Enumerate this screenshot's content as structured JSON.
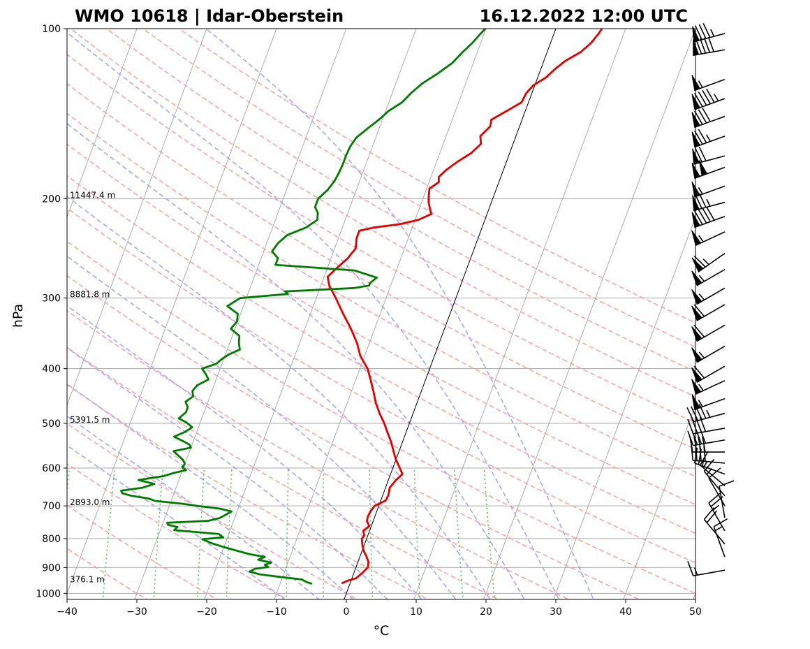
{
  "chart_data": {
    "type": "line",
    "title_left": "WMO 10618 | Idar-Oberstein",
    "title_right": "16.12.2022 12:00 UTC",
    "xlabel": "°C",
    "ylabel": "hPa",
    "x_range": [
      -40,
      50
    ],
    "y_range": [
      1025,
      100
    ],
    "y_scale": "log",
    "x_ticks": [
      "−40",
      "−30",
      "−20",
      "−10",
      "0",
      "10",
      "20",
      "30",
      "40",
      "50"
    ],
    "y_ticks": [
      "100",
      "200",
      "300",
      "400",
      "500",
      "600",
      "700",
      "800",
      "900",
      "1000"
    ],
    "height_labels": [
      {
        "pressure": 200,
        "text": "11447.4 m"
      },
      {
        "pressure": 300,
        "text": "8881.8 m"
      },
      {
        "pressure": 500,
        "text": "5391.5 m"
      },
      {
        "pressure": 700,
        "text": "2893.0 m"
      },
      {
        "pressure": 958,
        "text": "376.1 m"
      }
    ],
    "background": {
      "skew_dt_per_log10p": 30.0,
      "dry_adiabats_C": [
        -30,
        -20,
        -10,
        0,
        10,
        20,
        30,
        40,
        50,
        60,
        70,
        80,
        90,
        100,
        110,
        120,
        130,
        140,
        150
      ],
      "moist_adiabats_C": [
        -10,
        -5,
        0,
        5,
        10,
        15,
        20,
        25,
        30,
        35
      ],
      "mixing_ratio_isolines_gkg": [
        0.1,
        0.2,
        0.4,
        0.7,
        1,
        2,
        3,
        5,
        8,
        12,
        16
      ],
      "zero_isotherm": true
    },
    "colors": {
      "temperature": "#e00000",
      "dewpoint": "#007b00",
      "dry_adiabat": "#f4a6a6",
      "moist_adiabat": "#a6a6ef",
      "mixing_ratio": "#5fb85f",
      "isotherm": "#888888",
      "isobar": "#aaaaaa"
    },
    "series": [
      {
        "key": "temperature",
        "points": [
          [
            960,
            -1.2
          ],
          [
            950,
            -0.5
          ],
          [
            940,
            0.6
          ],
          [
            920,
            1.2
          ],
          [
            900,
            1.7
          ],
          [
            880,
            1.5
          ],
          [
            860,
            0.9
          ],
          [
            840,
            0.2
          ],
          [
            820,
            -0.3
          ],
          [
            800,
            -0.7
          ],
          [
            790,
            -0.5
          ],
          [
            775,
            -0.9
          ],
          [
            760,
            -0.3
          ],
          [
            745,
            -0.9
          ],
          [
            730,
            -1.0
          ],
          [
            715,
            -0.9
          ],
          [
            700,
            -0.6
          ],
          [
            685,
            0.7
          ],
          [
            670,
            0.8
          ],
          [
            650,
            0.6
          ],
          [
            630,
            1.1
          ],
          [
            615,
            1.7
          ],
          [
            600,
            1.0
          ],
          [
            580,
            0.0
          ],
          [
            560,
            -0.8
          ],
          [
            540,
            -1.6
          ],
          [
            520,
            -2.6
          ],
          [
            500,
            -3.6
          ],
          [
            480,
            -4.8
          ],
          [
            460,
            -5.9
          ],
          [
            440,
            -6.8
          ],
          [
            420,
            -7.8
          ],
          [
            400,
            -8.9
          ],
          [
            380,
            -10.6
          ],
          [
            360,
            -11.8
          ],
          [
            340,
            -13.4
          ],
          [
            320,
            -15.3
          ],
          [
            300,
            -17.2
          ],
          [
            285,
            -18.8
          ],
          [
            275,
            -19.5
          ],
          [
            265,
            -18.6
          ],
          [
            255,
            -17.6
          ],
          [
            245,
            -17.0
          ],
          [
            235,
            -17.4
          ],
          [
            228,
            -17.4
          ],
          [
            225,
            -15.5
          ],
          [
            222,
            -12.0
          ],
          [
            218,
            -9.5
          ],
          [
            213,
            -8.0
          ],
          [
            208,
            -8.5
          ],
          [
            203,
            -9.0
          ],
          [
            198,
            -9.3
          ],
          [
            192,
            -9.6
          ],
          [
            187,
            -8.6
          ],
          [
            183,
            -8.9
          ],
          [
            178,
            -8.2
          ],
          [
            172,
            -7.0
          ],
          [
            166,
            -5.5
          ],
          [
            160,
            -4.6
          ],
          [
            155,
            -5.1
          ],
          [
            149,
            -4.2
          ],
          [
            145,
            -4.4
          ],
          [
            140,
            -2.7
          ],
          [
            135,
            -1.0
          ],
          [
            130,
            -0.8
          ],
          [
            126,
            -0.2
          ],
          [
            122,
            1.2
          ],
          [
            118,
            2.0
          ],
          [
            114,
            3.1
          ],
          [
            110,
            4.8
          ],
          [
            106,
            5.8
          ],
          [
            102,
            6.4
          ],
          [
            100,
            6.6
          ]
        ]
      },
      {
        "key": "dewpoint",
        "points": [
          [
            962,
            -5.4
          ],
          [
            955,
            -6.3
          ],
          [
            945,
            -7.1
          ],
          [
            935,
            -10.5
          ],
          [
            925,
            -13.5
          ],
          [
            915,
            -15.0
          ],
          [
            905,
            -14.4
          ],
          [
            898,
            -12.6
          ],
          [
            890,
            -13.2
          ],
          [
            882,
            -12.4
          ],
          [
            872,
            -14.4
          ],
          [
            862,
            -13.6
          ],
          [
            852,
            -16.0
          ],
          [
            840,
            -18.0
          ],
          [
            828,
            -20.0
          ],
          [
            815,
            -22.0
          ],
          [
            802,
            -23.5
          ],
          [
            796,
            -20.6
          ],
          [
            785,
            -21.4
          ],
          [
            773,
            -28.0
          ],
          [
            763,
            -27.7
          ],
          [
            756,
            -29.2
          ],
          [
            750,
            -29.4
          ],
          [
            744,
            -23.6
          ],
          [
            736,
            -22.2
          ],
          [
            728,
            -21.6
          ],
          [
            716,
            -20.8
          ],
          [
            708,
            -22.6
          ],
          [
            700,
            -26.0
          ],
          [
            694,
            -28.2
          ],
          [
            686,
            -32.3
          ],
          [
            680,
            -33.2
          ],
          [
            672,
            -35.9
          ],
          [
            665,
            -37.4
          ],
          [
            658,
            -37.7
          ],
          [
            650,
            -34.8
          ],
          [
            640,
            -33.3
          ],
          [
            630,
            -35.8
          ],
          [
            620,
            -32.4
          ],
          [
            612,
            -31.1
          ],
          [
            605,
            -29.5
          ],
          [
            598,
            -30.2
          ],
          [
            590,
            -30.0
          ],
          [
            580,
            -30.5
          ],
          [
            570,
            -31.4
          ],
          [
            560,
            -32.3
          ],
          [
            552,
            -30.0
          ],
          [
            545,
            -30.4
          ],
          [
            538,
            -31.4
          ],
          [
            528,
            -33.0
          ],
          [
            518,
            -31.7
          ],
          [
            508,
            -30.9
          ],
          [
            498,
            -32.0
          ],
          [
            490,
            -33.3
          ],
          [
            478,
            -32.6
          ],
          [
            468,
            -32.6
          ],
          [
            458,
            -33.2
          ],
          [
            448,
            -32.4
          ],
          [
            438,
            -32.8
          ],
          [
            428,
            -32.4
          ],
          [
            418,
            -31.1
          ],
          [
            410,
            -31.7
          ],
          [
            400,
            -32.6
          ],
          [
            392,
            -30.8
          ],
          [
            385,
            -30.3
          ],
          [
            378,
            -29.6
          ],
          [
            370,
            -28.2
          ],
          [
            360,
            -28.7
          ],
          [
            350,
            -29.0
          ],
          [
            340,
            -30.6
          ],
          [
            330,
            -30.1
          ],
          [
            320,
            -30.4
          ],
          [
            310,
            -32.3
          ],
          [
            300,
            -30.9
          ],
          [
            295,
            -24.3
          ],
          [
            292,
            -24.8
          ],
          [
            288,
            -15.1
          ],
          [
            285,
            -13.1
          ],
          [
            282,
            -13.1
          ],
          [
            276,
            -12.4
          ],
          [
            268,
            -16.0
          ],
          [
            262,
            -27.6
          ],
          [
            255,
            -27.6
          ],
          [
            248,
            -28.8
          ],
          [
            240,
            -28.4
          ],
          [
            232,
            -27.5
          ],
          [
            225,
            -25.2
          ],
          [
            218,
            -24.0
          ],
          [
            212,
            -24.3
          ],
          [
            207,
            -25.0
          ],
          [
            200,
            -25.0
          ],
          [
            193,
            -24.1
          ],
          [
            186,
            -23.6
          ],
          [
            180,
            -23.4
          ],
          [
            174,
            -23.3
          ],
          [
            168,
            -23.3
          ],
          [
            162,
            -23.2
          ],
          [
            156,
            -22.8
          ],
          [
            150,
            -21.6
          ],
          [
            145,
            -20.5
          ],
          [
            140,
            -19.6
          ],
          [
            135,
            -18.1
          ],
          [
            130,
            -17.3
          ],
          [
            125,
            -16.2
          ],
          [
            120,
            -14.5
          ],
          [
            115,
            -13.0
          ],
          [
            110,
            -12.1
          ],
          [
            106,
            -11.2
          ],
          [
            102,
            -10.5
          ],
          [
            100,
            -10.1
          ]
        ]
      }
    ],
    "wind_barbs": [
      {
        "p": 102,
        "dir": 255,
        "kt": 85
      },
      {
        "p": 109,
        "dir": 260,
        "kt": 90
      },
      {
        "p": 123,
        "dir": 250,
        "kt": 55
      },
      {
        "p": 133,
        "dir": 250,
        "kt": 95
      },
      {
        "p": 143,
        "dir": 250,
        "kt": 80
      },
      {
        "p": 155,
        "dir": 250,
        "kt": 75
      },
      {
        "p": 168,
        "dir": 255,
        "kt": 70
      },
      {
        "p": 176,
        "dir": 250,
        "kt": 100
      },
      {
        "p": 190,
        "dir": 250,
        "kt": 55
      },
      {
        "p": 203,
        "dir": 255,
        "kt": 75
      },
      {
        "p": 215,
        "dir": 250,
        "kt": 90
      },
      {
        "p": 229,
        "dir": 245,
        "kt": 55
      },
      {
        "p": 250,
        "dir": 235,
        "kt": 65
      },
      {
        "p": 267,
        "dir": 240,
        "kt": 55
      },
      {
        "p": 288,
        "dir": 240,
        "kt": 55
      },
      {
        "p": 308,
        "dir": 240,
        "kt": 60
      },
      {
        "p": 335,
        "dir": 240,
        "kt": 60
      },
      {
        "p": 365,
        "dir": 240,
        "kt": 55
      },
      {
        "p": 396,
        "dir": 240,
        "kt": 60
      },
      {
        "p": 420,
        "dir": 245,
        "kt": 55
      },
      {
        "p": 452,
        "dir": 250,
        "kt": 55
      },
      {
        "p": 480,
        "dir": 255,
        "kt": 45
      },
      {
        "p": 510,
        "dir": 260,
        "kt": 40
      },
      {
        "p": 535,
        "dir": 260,
        "kt": 40
      },
      {
        "p": 562,
        "dir": 270,
        "kt": 40
      },
      {
        "p": 588,
        "dir": 275,
        "kt": 40
      },
      {
        "p": 615,
        "dir": 290,
        "kt": 25
      },
      {
        "p": 645,
        "dir": 310,
        "kt": 15
      },
      {
        "p": 672,
        "dir": 320,
        "kt": 15
      },
      {
        "p": 700,
        "dir": 330,
        "kt": 10
      },
      {
        "p": 735,
        "dir": 350,
        "kt": 10
      },
      {
        "p": 775,
        "dir": 330,
        "kt": 25
      },
      {
        "p": 818,
        "dir": 320,
        "kt": 20
      },
      {
        "p": 862,
        "dir": 340,
        "kt": 15
      },
      {
        "p": 910,
        "dir": 260,
        "kt": 15
      }
    ]
  }
}
